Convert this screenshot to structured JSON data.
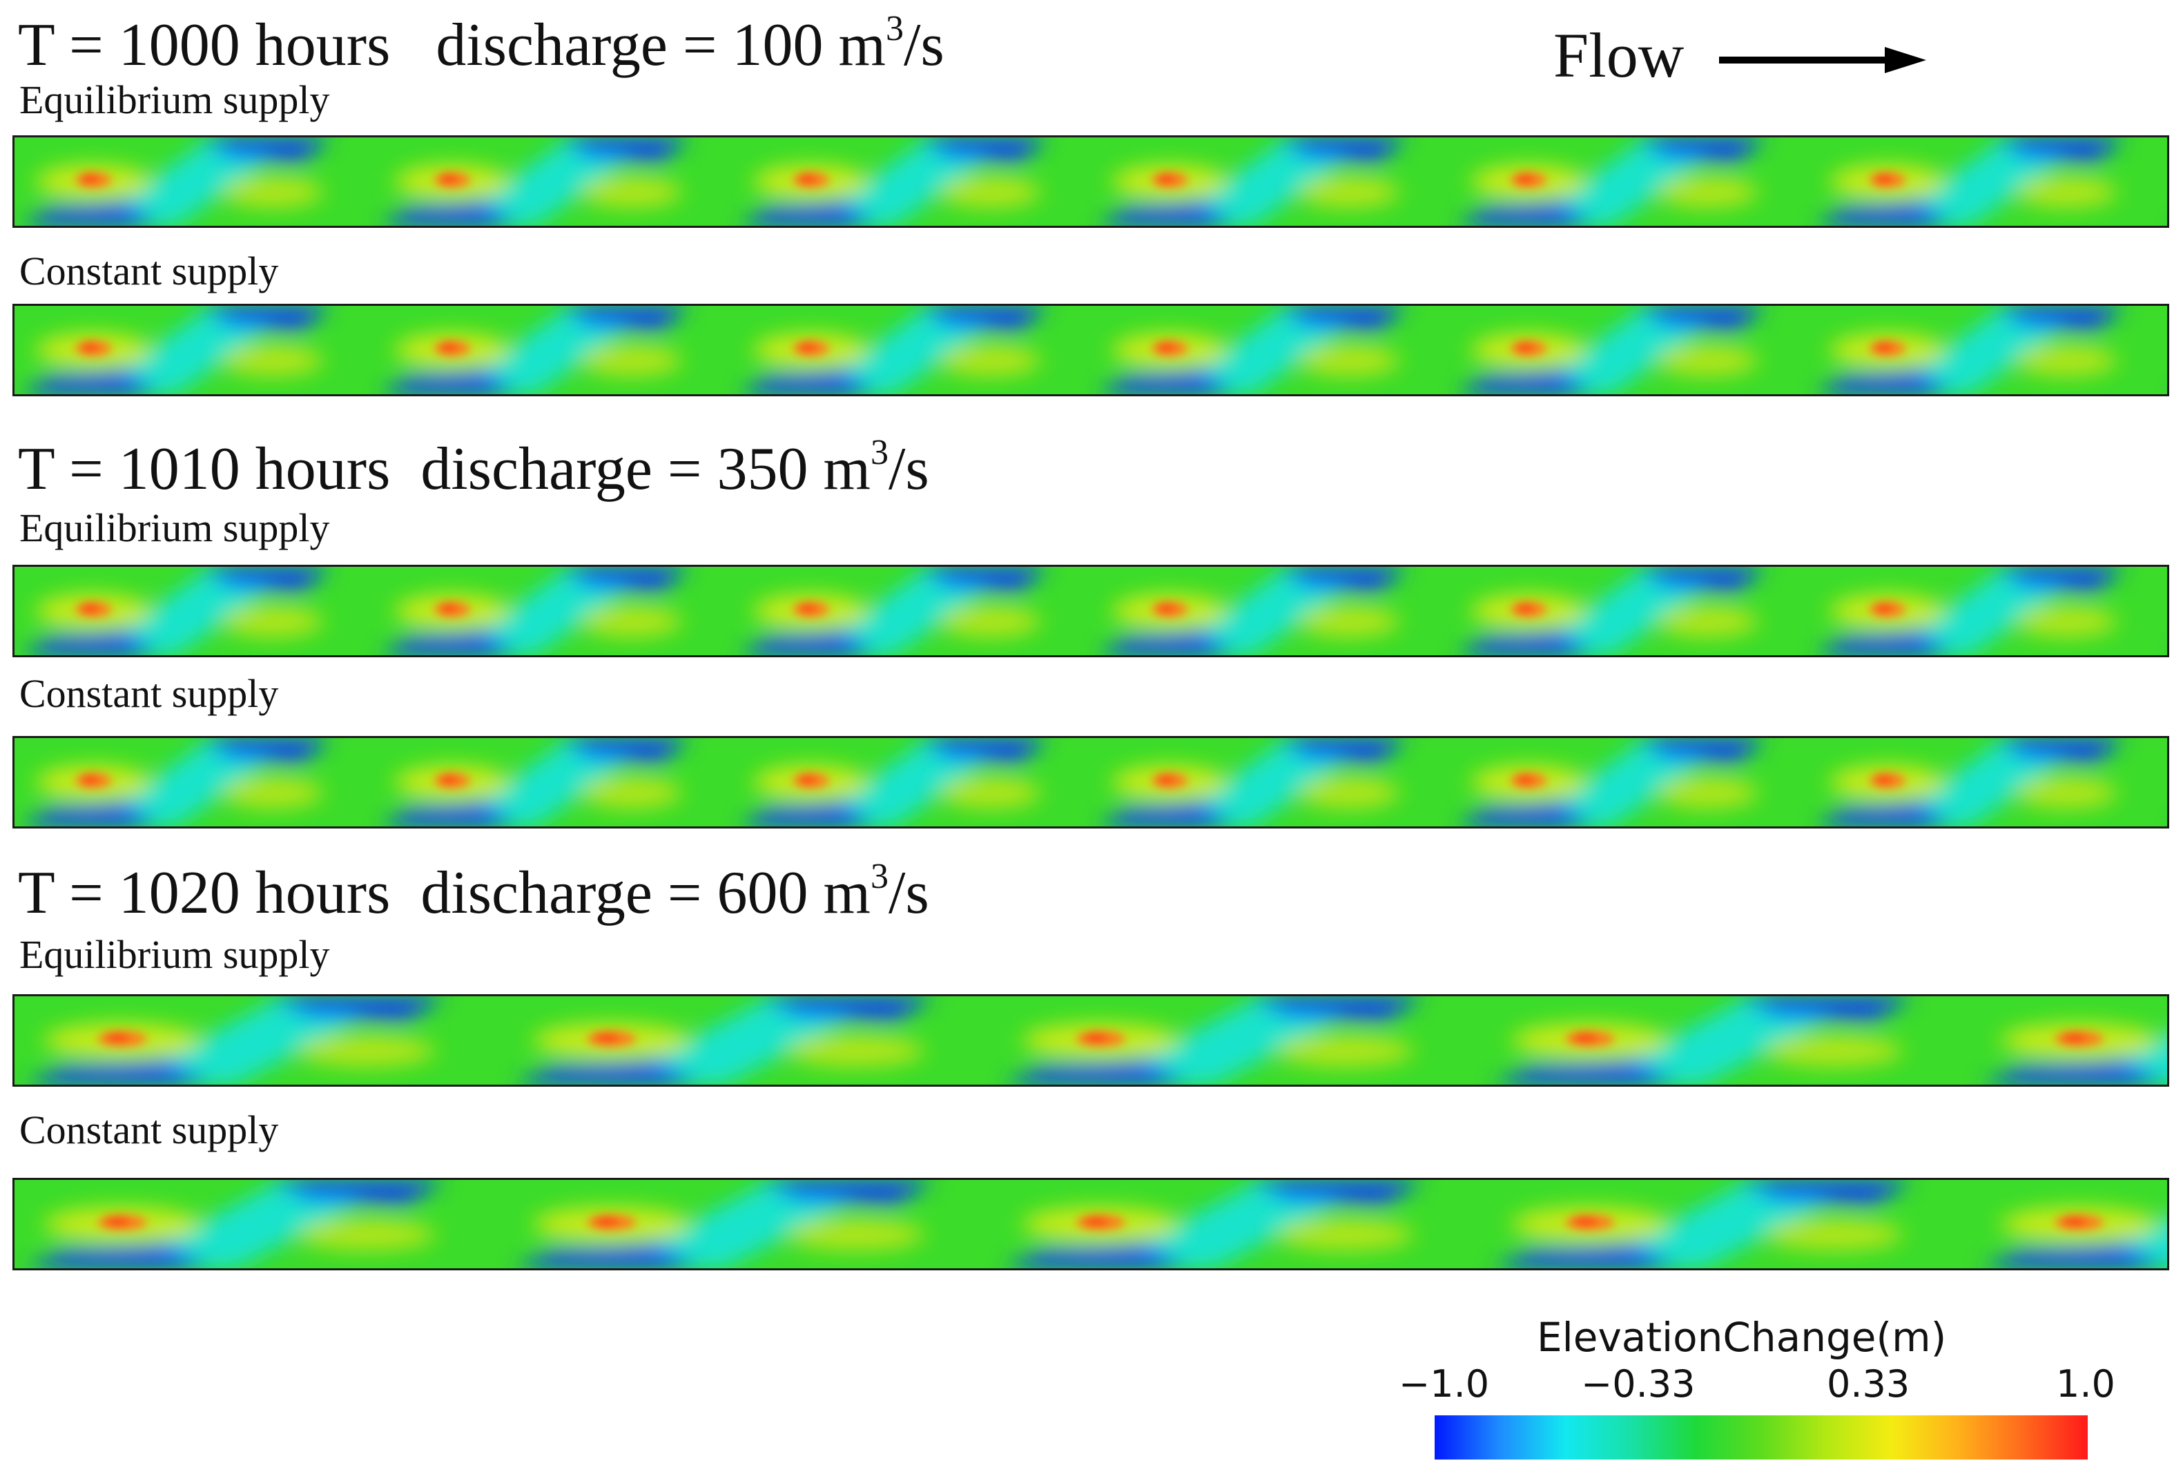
{
  "flow": {
    "label": "Flow"
  },
  "groups": [
    {
      "time_label": "T = 1000 hours",
      "discharge_label": "discharge = 100 m",
      "unit_exp": "3",
      "unit_tail": "/s",
      "strips": [
        {
          "label": "Equilibrium supply"
        },
        {
          "label": "Constant supply"
        }
      ]
    },
    {
      "time_label": "T = 1010 hours",
      "discharge_label": "discharge = 350 m",
      "unit_exp": "3",
      "unit_tail": "/s",
      "strips": [
        {
          "label": "Equilibrium supply"
        },
        {
          "label": "Constant supply"
        }
      ]
    },
    {
      "time_label": "T = 1020 hours",
      "discharge_label": "discharge = 600 m",
      "unit_exp": "3",
      "unit_tail": "/s",
      "strips": [
        {
          "label": "Equilibrium supply"
        },
        {
          "label": "Constant supply"
        }
      ]
    }
  ],
  "colorbar": {
    "title": "ElevationChange(m)",
    "ticks": [
      "−1.0",
      "−0.33",
      "0.33",
      "1.0"
    ],
    "range": [
      -1.0,
      1.0
    ],
    "colors": [
      "#0019ff",
      "#1e8cff",
      "#12e8f0",
      "#18e0a8",
      "#1ed93a",
      "#5ddc1d",
      "#b3e813",
      "#f4ec12",
      "#ffb21a",
      "#ff6a1d",
      "#ff1a1a"
    ]
  }
}
